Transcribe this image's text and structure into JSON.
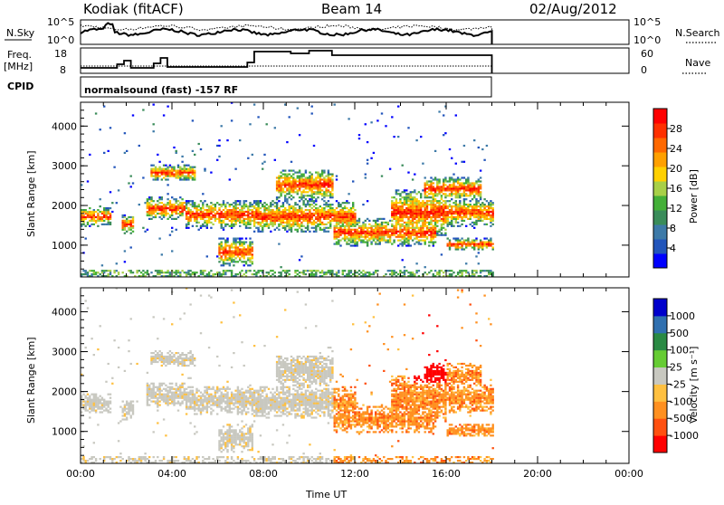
{
  "header": {
    "station": "Kodiak (fitACF)",
    "beam": "Beam 14",
    "date": "02/Aug/2012"
  },
  "top_strip": {
    "nsky_label": "N.Sky",
    "nsearch_label": "N.Search",
    "tick_top": "10^5",
    "tick_bottom": "10^0",
    "freq_label": "Freq.",
    "freq_unit": "[MHz]",
    "freq_ticks": [
      "18",
      "8"
    ],
    "nave_label": "Nave",
    "nave_ticks": [
      "60",
      "0"
    ],
    "cpid_label": "CPID",
    "cpid_text": "normalsound (fast) -157 RF"
  },
  "chart_data": [
    {
      "type": "heatmap",
      "title": "",
      "xlabel": "Time UT",
      "ylabel": "Slant Range [km]",
      "x_ticks": [
        "00:00",
        "04:00",
        "08:00",
        "12:00",
        "16:00",
        "20:00",
        "00:00"
      ],
      "x_range_hours": [
        0,
        24
      ],
      "ylim": [
        200,
        4600
      ],
      "y_ticks": [
        "1000",
        "2000",
        "3000",
        "4000"
      ],
      "colorbar": {
        "label": "Power [dB]",
        "ticks": [
          "4",
          "8",
          "12",
          "16",
          "20",
          "24",
          "28"
        ],
        "colors": [
          "#0000ff",
          "#2255bb",
          "#3d7aa8",
          "#3a8c5a",
          "#44b038",
          "#a8d048",
          "#ffd000",
          "#ffa000",
          "#ff6800",
          "#ff3000",
          "#ff0000"
        ]
      },
      "data_end_hour": 18.0
    },
    {
      "type": "heatmap",
      "title": "",
      "xlabel": "Time UT",
      "ylabel": "Slant Range [km]",
      "x_ticks": [
        "00:00",
        "04:00",
        "08:00",
        "12:00",
        "16:00",
        "20:00",
        "00:00"
      ],
      "x_range_hours": [
        0,
        24
      ],
      "ylim": [
        200,
        4600
      ],
      "y_ticks": [
        "1000",
        "2000",
        "3000",
        "4000"
      ],
      "colorbar": {
        "label": "Velocity [m s⁻¹]",
        "ticks": [
          "1000",
          "500",
          "100",
          "25",
          "-25",
          "-100",
          "-500",
          "-1000"
        ],
        "colors": [
          "#0000cc",
          "#3070b0",
          "#2a8a44",
          "#66cc33",
          "#c8c8c0",
          "#ffc040",
          "#ff9020",
          "#ff5010",
          "#ff0000"
        ]
      },
      "data_end_hour": 18.0
    }
  ]
}
